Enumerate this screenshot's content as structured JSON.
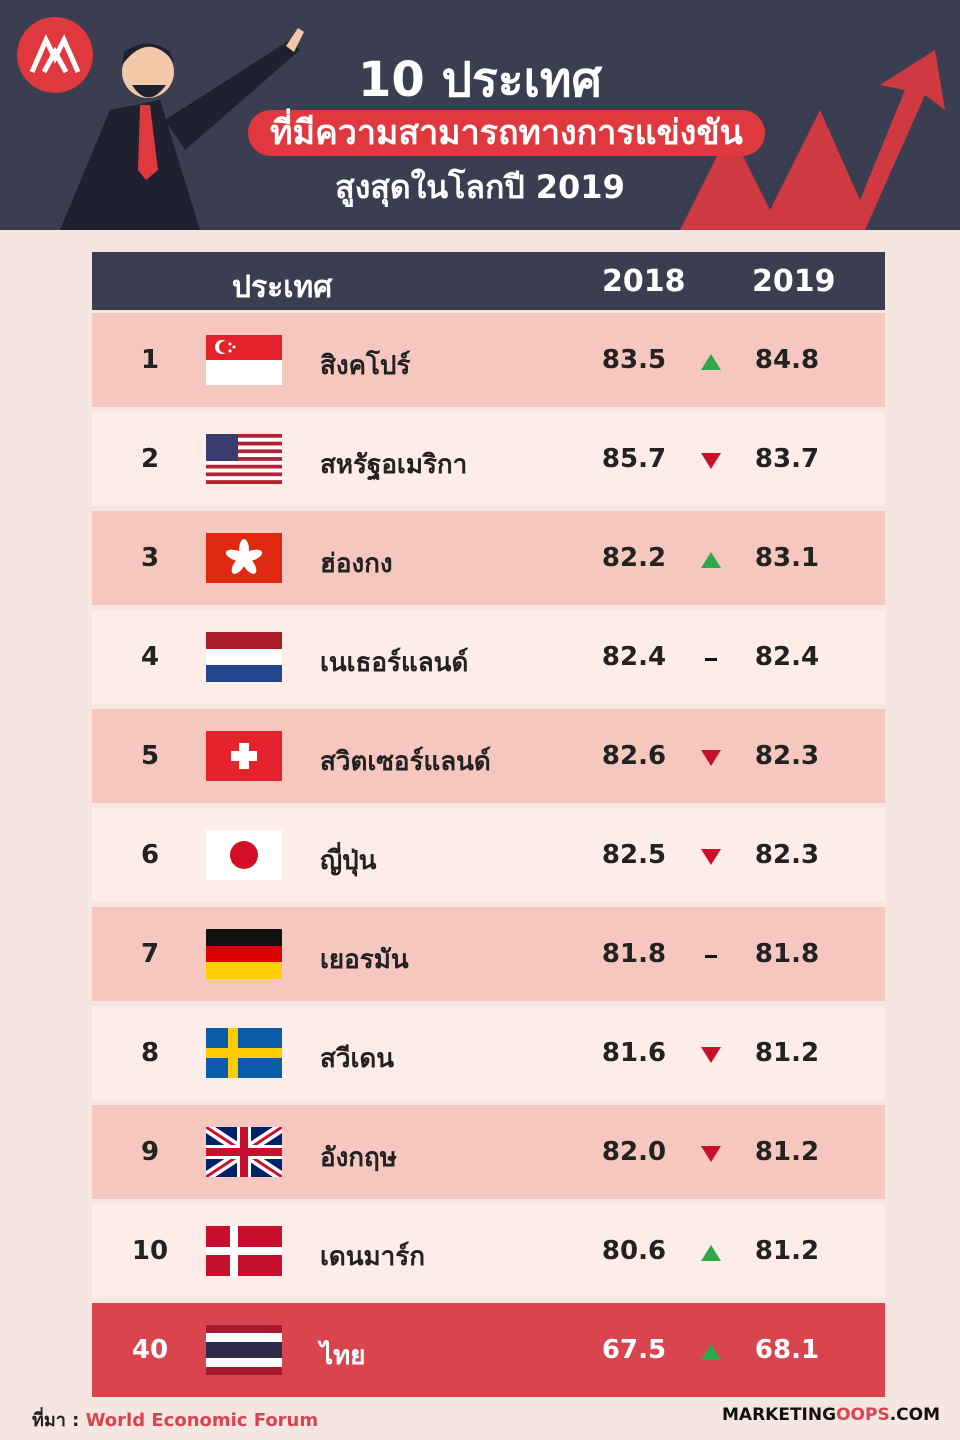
{
  "header": {
    "title": "10 ประเทศ",
    "subtitle": "ที่มีความสามารถทางการแข่งขัน",
    "subtitle2": "สูงสุดในโลกปี 2019"
  },
  "table": {
    "columns": [
      "ประเทศ",
      "2018",
      "2019"
    ],
    "rows": [
      {
        "rank": "1",
        "country": "สิงคโปร์",
        "y2018": "83.5",
        "y2019": "84.8"
      },
      {
        "rank": "2",
        "country": "สหรัฐอเมริกา",
        "y2018": "85.7",
        "y2019": "83.7"
      },
      {
        "rank": "3",
        "country": "ฮ่องกง",
        "y2018": "82.2",
        "y2019": "83.1"
      },
      {
        "rank": "4",
        "country": "เนเธอร์แลนด์",
        "y2018": "82.4",
        "y2019": "82.4"
      },
      {
        "rank": "5",
        "country": "สวิตเซอร์แลนด์",
        "y2018": "82.6",
        "y2019": "82.3"
      },
      {
        "rank": "6",
        "country": "ญี่ปุ่น",
        "y2018": "82.5",
        "y2019": "82.3"
      },
      {
        "rank": "7",
        "country": "เยอรมัน",
        "y2018": "81.8",
        "y2019": "81.8"
      },
      {
        "rank": "8",
        "country": "สวีเดน",
        "y2018": "81.6",
        "y2019": "81.2"
      },
      {
        "rank": "9",
        "country": "อังกฤษ",
        "y2018": "82.0",
        "y2019": "81.2"
      },
      {
        "rank": "10",
        "country": "เดนมาร์ก",
        "y2018": "80.6",
        "y2019": "81.2"
      },
      {
        "rank": "40",
        "country": "ไทย",
        "y2018": "67.5",
        "y2019": "68.1"
      }
    ]
  },
  "footer": {
    "source_label": "ที่มา :",
    "source": "World Economic Forum",
    "brand": [
      "MARKETING",
      "OOPS",
      ".COM"
    ]
  }
}
